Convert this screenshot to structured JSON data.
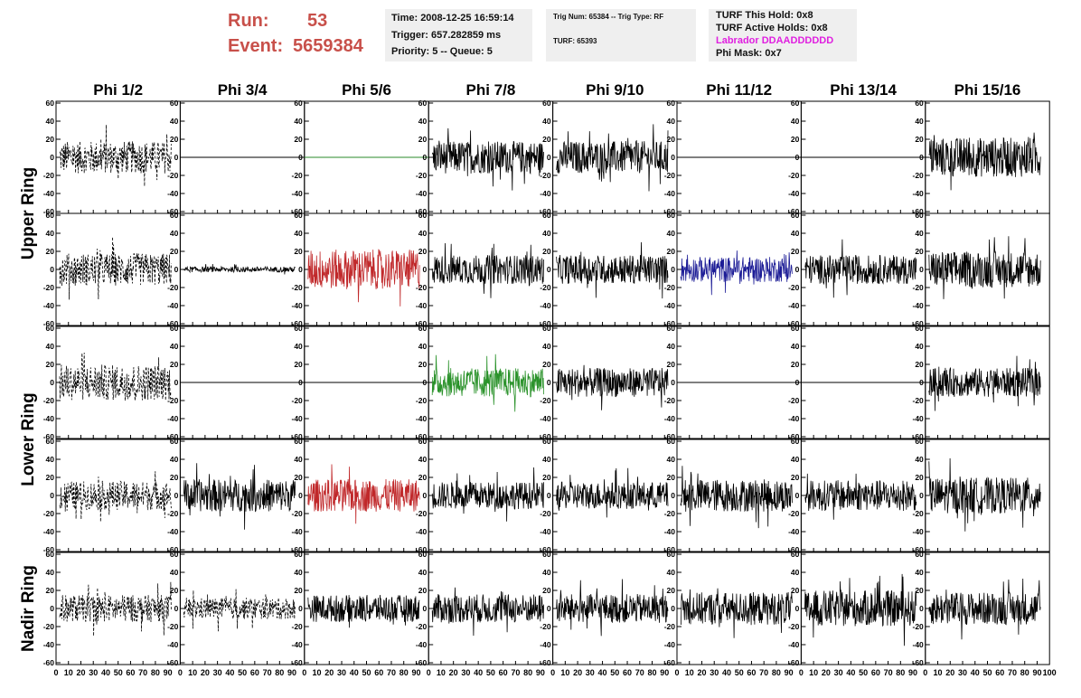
{
  "header": {
    "run_label": "Run:",
    "run_value": "53",
    "event_label": "Event:",
    "event_value": "5659384"
  },
  "info1": {
    "time": "Time: 2008-12-25 16:59:14",
    "trigger": "Trigger: 657.282859 ms",
    "priority": "Priority: 5 -- Queue: 5"
  },
  "info2": {
    "trig": "Trig Num: 65384 -- Trig Type: RF",
    "turf": "TURF: 65393"
  },
  "info3": {
    "this_hold": "TURF This Hold: 0x8",
    "active_holds": "TURF Active Holds: 0x8",
    "labrador": "Labrador DDAADDDDDD",
    "phi_mask": "Phi Mask: 0x7"
  },
  "grid": {
    "phi_labels": [
      "Phi 1/2",
      "Phi 3/4",
      "Phi 5/6",
      "Phi 7/8",
      "Phi 9/10",
      "Phi 11/12",
      "Phi 13/14",
      "Phi 15/16"
    ],
    "ring_labels": [
      "Upper Ring",
      "Lower Ring",
      "Nadir Ring"
    ],
    "y_ticks": [
      "60",
      "40",
      "20",
      "0",
      "-20",
      "-40",
      "-60"
    ],
    "x_ticks": [
      "0",
      "10",
      "20",
      "30",
      "40",
      "50",
      "60",
      "70",
      "80",
      "90",
      "100"
    ],
    "x_range": [
      0,
      100
    ],
    "y_range": [
      -62,
      62
    ],
    "colors": {
      "black": "#000000",
      "red": "#c0282a",
      "blue": "#1c1c96",
      "green": "#2a922a",
      "flat_green": "#2a8a2a"
    },
    "rows": [
      {
        "cells": [
          {
            "style": "dashed",
            "amp": 18
          },
          {
            "style": "flat"
          },
          {
            "style": "flat",
            "color": "flat_green"
          },
          {
            "style": "solid",
            "amp": 18
          },
          {
            "style": "solid",
            "amp": 18
          },
          {
            "style": "flat"
          },
          {
            "style": "flat"
          },
          {
            "style": "solid",
            "amp": 22
          }
        ]
      },
      {
        "cells": [
          {
            "style": "dashed",
            "amp": 18
          },
          {
            "style": "solid",
            "amp": 3
          },
          {
            "style": "solid",
            "amp": 22,
            "color": "red"
          },
          {
            "style": "solid",
            "amp": 16
          },
          {
            "style": "solid",
            "amp": 16
          },
          {
            "style": "solid",
            "amp": 14,
            "color": "blue"
          },
          {
            "style": "solid",
            "amp": 16
          },
          {
            "style": "solid",
            "amp": 20
          }
        ]
      },
      {
        "cells": [
          {
            "style": "dashed",
            "amp": 20
          },
          {
            "style": "flat"
          },
          {
            "style": "flat"
          },
          {
            "style": "solid",
            "amp": 16,
            "color": "green"
          },
          {
            "style": "solid",
            "amp": 16
          },
          {
            "style": "flat"
          },
          {
            "style": "flat"
          },
          {
            "style": "solid",
            "amp": 16
          }
        ]
      },
      {
        "cells": [
          {
            "style": "dashed",
            "amp": 16
          },
          {
            "style": "solid",
            "amp": 18
          },
          {
            "style": "solid",
            "amp": 18,
            "color": "red"
          },
          {
            "style": "solid",
            "amp": 15
          },
          {
            "style": "solid",
            "amp": 15
          },
          {
            "style": "solid",
            "amp": 18
          },
          {
            "style": "solid",
            "amp": 17
          },
          {
            "style": "solid",
            "amp": 20
          }
        ]
      },
      {
        "cells": [
          {
            "style": "dashed",
            "amp": 15
          },
          {
            "style": "dashed",
            "amp": 12
          },
          {
            "style": "solid",
            "amp": 15
          },
          {
            "style": "solid",
            "amp": 16
          },
          {
            "style": "solid",
            "amp": 16
          },
          {
            "style": "solid",
            "amp": 18
          },
          {
            "style": "solid",
            "amp": 20
          },
          {
            "style": "solid",
            "amp": 18
          }
        ]
      }
    ]
  }
}
